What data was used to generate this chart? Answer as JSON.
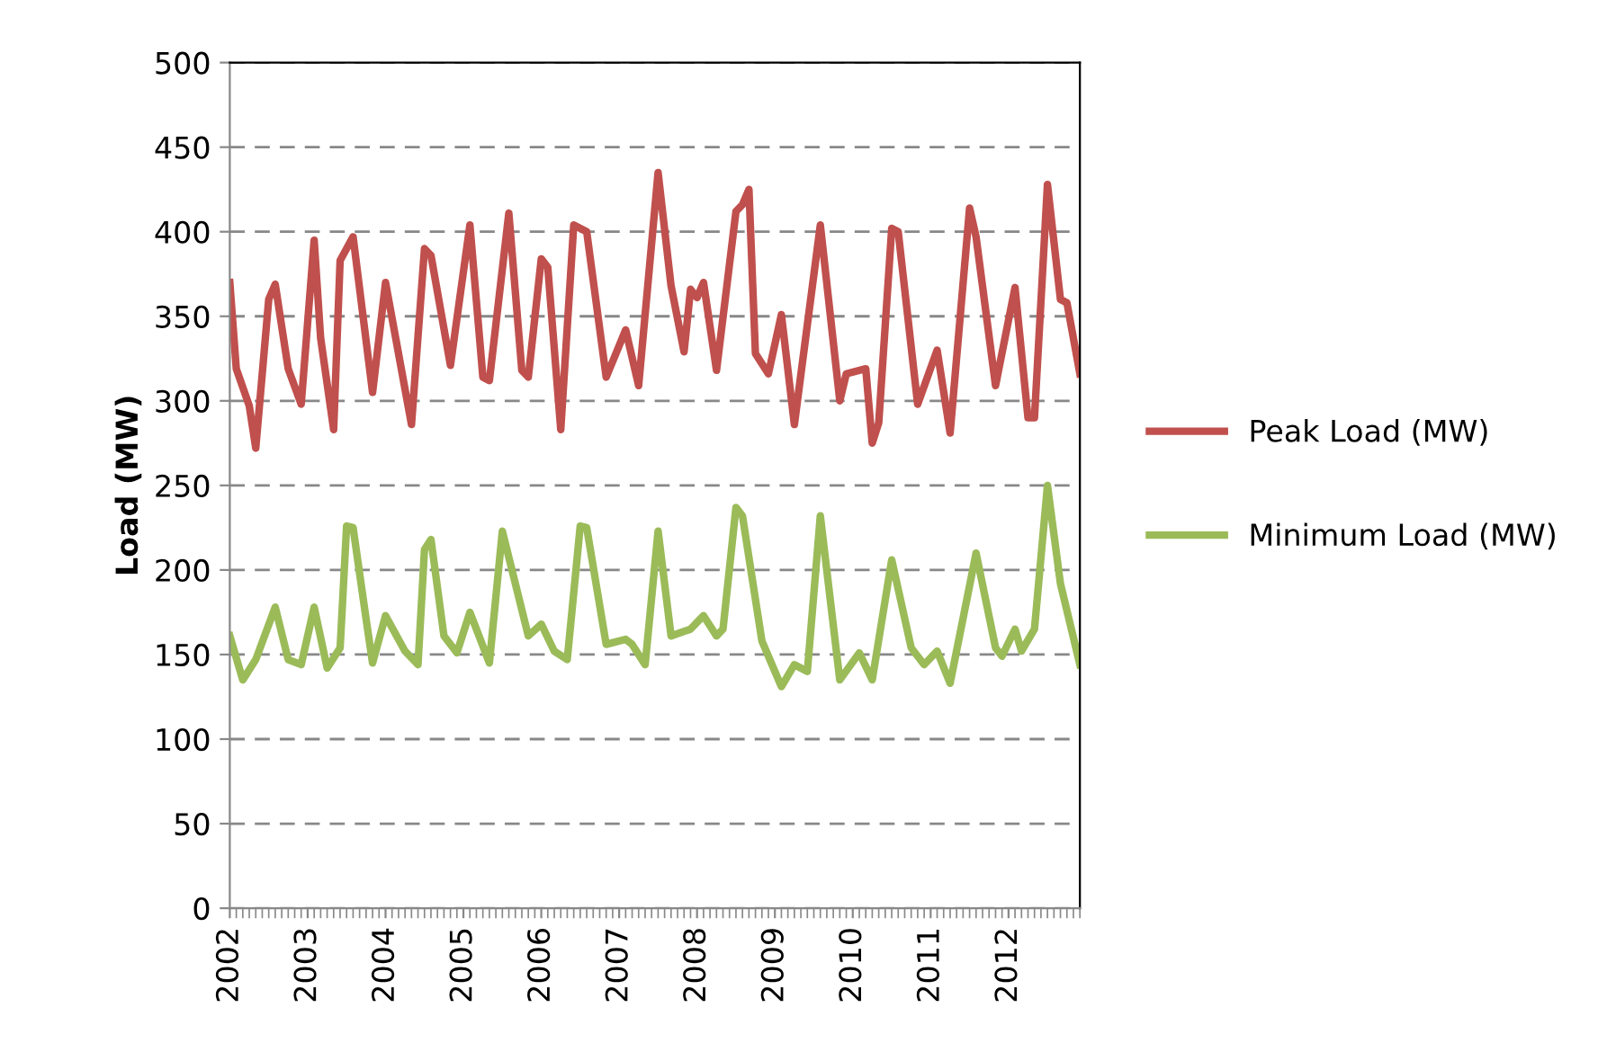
{
  "chart_data": {
    "type": "line",
    "ylabel": "Load (MW)",
    "ylim": [
      0,
      500
    ],
    "yticks": [
      0,
      50,
      100,
      150,
      200,
      250,
      300,
      350,
      400,
      450,
      500
    ],
    "xlim": [
      "2002-01",
      "2012-12"
    ],
    "xticks": [
      "2002",
      "2003",
      "2004",
      "2005",
      "2006",
      "2007",
      "2008",
      "2009",
      "2010",
      "2011",
      "2012"
    ],
    "grid": "y",
    "legend": "right",
    "marker": "none",
    "line_style": "solid",
    "series": [
      {
        "name": "Peak Load (MW)",
        "color": "#c0504d",
        "x": [
          "2002-01",
          "2002-02",
          "2002-04",
          "2002-05",
          "2002-07",
          "2002-08",
          "2002-10",
          "2002-12",
          "2003-02",
          "2003-03",
          "2003-05",
          "2003-06",
          "2003-08",
          "2003-11",
          "2004-01",
          "2004-05",
          "2004-07",
          "2004-08",
          "2004-11",
          "2005-02",
          "2005-04",
          "2005-05",
          "2005-08",
          "2005-10",
          "2005-11",
          "2006-01",
          "2006-02",
          "2006-04",
          "2006-06",
          "2006-08",
          "2006-11",
          "2007-02",
          "2007-04",
          "2007-07",
          "2007-09",
          "2007-11",
          "2007-12",
          "2008-01",
          "2008-02",
          "2008-04",
          "2008-07",
          "2008-08",
          "2008-09",
          "2008-10",
          "2008-12",
          "2009-02",
          "2009-04",
          "2009-08",
          "2009-11",
          "2009-12",
          "2010-03",
          "2010-04",
          "2010-05",
          "2010-07",
          "2010-08",
          "2010-11",
          "2011-02",
          "2011-04",
          "2011-07",
          "2011-08",
          "2011-11",
          "2012-02",
          "2012-04",
          "2012-05",
          "2012-07",
          "2012-09",
          "2012-10",
          "2012-12"
        ],
        "values": [
          370,
          319,
          297,
          272,
          360,
          369,
          319,
          298,
          395,
          337,
          283,
          383,
          397,
          305,
          370,
          286,
          390,
          386,
          321,
          404,
          314,
          312,
          411,
          318,
          314,
          384,
          379,
          283,
          404,
          400,
          314,
          342,
          309,
          435,
          368,
          329,
          366,
          361,
          370,
          318,
          412,
          416,
          425,
          328,
          316,
          351,
          286,
          404,
          300,
          316,
          319,
          275,
          287,
          402,
          400,
          298,
          330,
          281,
          414,
          397,
          309,
          367,
          290,
          290,
          428,
          360,
          358,
          316
        ]
      },
      {
        "name": "Minimum Load (MW)",
        "color": "#9bbb59",
        "x": [
          "2002-01",
          "2002-03",
          "2002-05",
          "2002-08",
          "2002-10",
          "2002-12",
          "2003-02",
          "2003-04",
          "2003-06",
          "2003-07",
          "2003-08",
          "2003-10",
          "2003-11",
          "2004-01",
          "2004-04",
          "2004-06",
          "2004-07",
          "2004-08",
          "2004-10",
          "2004-12",
          "2005-02",
          "2005-05",
          "2005-07",
          "2005-11",
          "2006-01",
          "2006-03",
          "2006-05",
          "2006-07",
          "2006-08",
          "2006-11",
          "2007-02",
          "2007-03",
          "2007-05",
          "2007-07",
          "2007-09",
          "2007-12",
          "2008-02",
          "2008-04",
          "2008-05",
          "2008-07",
          "2008-08",
          "2008-11",
          "2008-12",
          "2009-02",
          "2009-04",
          "2009-06",
          "2009-08",
          "2009-11",
          "2010-02",
          "2010-04",
          "2010-07",
          "2010-10",
          "2010-12",
          "2011-02",
          "2011-04",
          "2011-08",
          "2011-11",
          "2011-12",
          "2012-02",
          "2012-03",
          "2012-05",
          "2012-07",
          "2012-09",
          "2012-12"
        ],
        "values": [
          161,
          135,
          147,
          178,
          147,
          144,
          178,
          142,
          154,
          226,
          225,
          171,
          145,
          173,
          152,
          144,
          212,
          218,
          161,
          151,
          175,
          145,
          223,
          161,
          168,
          152,
          147,
          226,
          225,
          156,
          159,
          156,
          144,
          223,
          161,
          165,
          173,
          161,
          165,
          237,
          232,
          158,
          149,
          131,
          144,
          140,
          232,
          135,
          151,
          135,
          206,
          154,
          144,
          152,
          133,
          210,
          154,
          149,
          165,
          152,
          165,
          250,
          192,
          144
        ]
      }
    ]
  }
}
